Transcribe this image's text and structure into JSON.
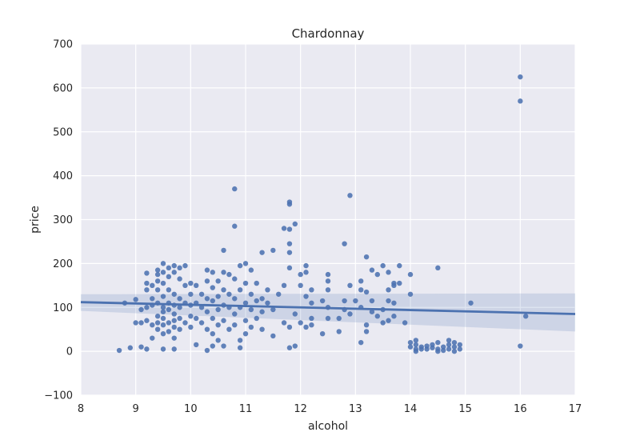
{
  "chart_data": {
    "type": "scatter",
    "title": "Chardonnay",
    "xlabel": "alcohol",
    "ylabel": "price",
    "xlim": [
      8,
      17
    ],
    "ylim": [
      -100,
      700
    ],
    "xticks": [
      8,
      9,
      10,
      11,
      12,
      13,
      14,
      15,
      16,
      17
    ],
    "yticks": [
      -100,
      0,
      100,
      200,
      300,
      400,
      500,
      600,
      700
    ],
    "ytick_labels": [
      "−100",
      "0",
      "100",
      "200",
      "300",
      "400",
      "500",
      "600",
      "700"
    ],
    "grid": true,
    "colors": {
      "background": "#eaeaf2",
      "grid": "#ffffff",
      "points": "#4c72b0",
      "line": "#4c72b0",
      "band": "#4c72b0"
    },
    "regression": {
      "x": [
        8,
        17
      ],
      "y": [
        112,
        85
      ],
      "ci_lower": [
        92,
        45
      ],
      "ci_upper": [
        130,
        132
      ]
    },
    "points": [
      [
        8.7,
        2
      ],
      [
        8.9,
        8
      ],
      [
        8.8,
        110
      ],
      [
        9.0,
        65
      ],
      [
        9.0,
        118
      ],
      [
        9.1,
        10
      ],
      [
        9.1,
        95
      ],
      [
        9.1,
        65
      ],
      [
        9.2,
        178
      ],
      [
        9.2,
        155
      ],
      [
        9.2,
        140
      ],
      [
        9.2,
        100
      ],
      [
        9.2,
        70
      ],
      [
        9.2,
        5
      ],
      [
        9.3,
        150
      ],
      [
        9.3,
        120
      ],
      [
        9.3,
        60
      ],
      [
        9.3,
        105
      ],
      [
        9.3,
        30
      ],
      [
        9.4,
        185
      ],
      [
        9.4,
        175
      ],
      [
        9.4,
        160
      ],
      [
        9.4,
        140
      ],
      [
        9.4,
        110
      ],
      [
        9.4,
        80
      ],
      [
        9.4,
        65
      ],
      [
        9.4,
        50
      ],
      [
        9.5,
        200
      ],
      [
        9.5,
        180
      ],
      [
        9.5,
        155
      ],
      [
        9.5,
        125
      ],
      [
        9.5,
        100
      ],
      [
        9.5,
        90
      ],
      [
        9.5,
        75
      ],
      [
        9.5,
        60
      ],
      [
        9.5,
        40
      ],
      [
        9.5,
        5
      ],
      [
        9.6,
        190
      ],
      [
        9.6,
        170
      ],
      [
        9.6,
        140
      ],
      [
        9.6,
        110
      ],
      [
        9.6,
        95
      ],
      [
        9.6,
        65
      ],
      [
        9.6,
        45
      ],
      [
        9.7,
        195
      ],
      [
        9.7,
        180
      ],
      [
        9.7,
        130
      ],
      [
        9.7,
        105
      ],
      [
        9.7,
        85
      ],
      [
        9.7,
        70
      ],
      [
        9.7,
        55
      ],
      [
        9.7,
        30
      ],
      [
        9.7,
        5
      ],
      [
        9.8,
        190
      ],
      [
        9.8,
        165
      ],
      [
        9.8,
        120
      ],
      [
        9.8,
        100
      ],
      [
        9.8,
        75
      ],
      [
        9.8,
        50
      ],
      [
        9.9,
        195
      ],
      [
        9.9,
        150
      ],
      [
        9.9,
        110
      ],
      [
        9.9,
        65
      ],
      [
        10.0,
        155
      ],
      [
        10.0,
        130
      ],
      [
        10.0,
        105
      ],
      [
        10.0,
        80
      ],
      [
        10.0,
        55
      ],
      [
        10.1,
        150
      ],
      [
        10.1,
        110
      ],
      [
        10.1,
        75
      ],
      [
        10.1,
        15
      ],
      [
        10.2,
        130
      ],
      [
        10.2,
        100
      ],
      [
        10.2,
        65
      ],
      [
        10.3,
        185
      ],
      [
        10.3,
        160
      ],
      [
        10.3,
        120
      ],
      [
        10.3,
        90
      ],
      [
        10.3,
        50
      ],
      [
        10.3,
        2
      ],
      [
        10.4,
        180
      ],
      [
        10.4,
        145
      ],
      [
        10.4,
        115
      ],
      [
        10.4,
        75
      ],
      [
        10.4,
        40
      ],
      [
        10.4,
        12
      ],
      [
        10.5,
        160
      ],
      [
        10.5,
        125
      ],
      [
        10.5,
        95
      ],
      [
        10.5,
        60
      ],
      [
        10.5,
        25
      ],
      [
        10.6,
        230
      ],
      [
        10.6,
        180
      ],
      [
        10.6,
        140
      ],
      [
        10.6,
        105
      ],
      [
        10.6,
        70
      ],
      [
        10.6,
        12
      ],
      [
        10.7,
        175
      ],
      [
        10.7,
        130
      ],
      [
        10.7,
        100
      ],
      [
        10.7,
        50
      ],
      [
        10.8,
        370
      ],
      [
        10.8,
        285
      ],
      [
        10.8,
        165
      ],
      [
        10.8,
        120
      ],
      [
        10.8,
        85
      ],
      [
        10.8,
        60
      ],
      [
        10.9,
        195
      ],
      [
        10.9,
        140
      ],
      [
        10.9,
        100
      ],
      [
        10.9,
        25
      ],
      [
        10.9,
        8
      ],
      [
        11.0,
        200
      ],
      [
        11.0,
        155
      ],
      [
        11.0,
        110
      ],
      [
        11.0,
        70
      ],
      [
        11.0,
        40
      ],
      [
        11.1,
        185
      ],
      [
        11.1,
        130
      ],
      [
        11.1,
        95
      ],
      [
        11.1,
        55
      ],
      [
        11.2,
        155
      ],
      [
        11.2,
        115
      ],
      [
        11.2,
        75
      ],
      [
        11.3,
        225
      ],
      [
        11.3,
        120
      ],
      [
        11.3,
        90
      ],
      [
        11.3,
        50
      ],
      [
        11.4,
        140
      ],
      [
        11.4,
        110
      ],
      [
        11.5,
        230
      ],
      [
        11.5,
        95
      ],
      [
        11.5,
        35
      ],
      [
        11.6,
        130
      ],
      [
        11.7,
        280
      ],
      [
        11.7,
        150
      ],
      [
        11.7,
        65
      ],
      [
        11.8,
        340
      ],
      [
        11.8,
        335
      ],
      [
        11.8,
        278
      ],
      [
        11.8,
        245
      ],
      [
        11.8,
        225
      ],
      [
        11.8,
        190
      ],
      [
        11.8,
        55
      ],
      [
        11.8,
        8
      ],
      [
        11.9,
        290
      ],
      [
        11.9,
        85
      ],
      [
        11.9,
        12
      ],
      [
        12.0,
        175
      ],
      [
        12.0,
        150
      ],
      [
        12.0,
        65
      ],
      [
        12.1,
        195
      ],
      [
        12.1,
        180
      ],
      [
        12.1,
        125
      ],
      [
        12.1,
        55
      ],
      [
        12.2,
        140
      ],
      [
        12.2,
        110
      ],
      [
        12.2,
        75
      ],
      [
        12.2,
        60
      ],
      [
        12.4,
        115
      ],
      [
        12.4,
        40
      ],
      [
        12.5,
        175
      ],
      [
        12.5,
        160
      ],
      [
        12.5,
        140
      ],
      [
        12.5,
        100
      ],
      [
        12.5,
        75
      ],
      [
        12.7,
        75
      ],
      [
        12.7,
        45
      ],
      [
        12.8,
        245
      ],
      [
        12.8,
        115
      ],
      [
        12.8,
        95
      ],
      [
        12.9,
        355
      ],
      [
        12.9,
        150
      ],
      [
        12.9,
        85
      ],
      [
        13.0,
        115
      ],
      [
        13.1,
        160
      ],
      [
        13.1,
        140
      ],
      [
        13.1,
        100
      ],
      [
        13.1,
        20
      ],
      [
        13.2,
        215
      ],
      [
        13.2,
        135
      ],
      [
        13.2,
        60
      ],
      [
        13.2,
        45
      ],
      [
        13.3,
        185
      ],
      [
        13.3,
        115
      ],
      [
        13.3,
        90
      ],
      [
        13.4,
        175
      ],
      [
        13.4,
        80
      ],
      [
        13.5,
        195
      ],
      [
        13.5,
        95
      ],
      [
        13.5,
        65
      ],
      [
        13.6,
        180
      ],
      [
        13.6,
        140
      ],
      [
        13.6,
        115
      ],
      [
        13.6,
        70
      ],
      [
        13.7,
        155
      ],
      [
        13.7,
        150
      ],
      [
        13.7,
        110
      ],
      [
        13.7,
        80
      ],
      [
        13.8,
        195
      ],
      [
        13.8,
        155
      ],
      [
        13.9,
        65
      ],
      [
        14.0,
        175
      ],
      [
        14.0,
        130
      ],
      [
        14.0,
        20
      ],
      [
        14.0,
        10
      ],
      [
        14.1,
        25
      ],
      [
        14.1,
        15
      ],
      [
        14.1,
        5
      ],
      [
        14.1,
        0
      ],
      [
        14.2,
        10
      ],
      [
        14.2,
        5
      ],
      [
        14.3,
        5
      ],
      [
        14.3,
        12
      ],
      [
        14.4,
        8
      ],
      [
        14.4,
        15
      ],
      [
        14.5,
        190
      ],
      [
        14.5,
        20
      ],
      [
        14.5,
        5
      ],
      [
        14.5,
        0
      ],
      [
        14.6,
        10
      ],
      [
        14.6,
        2
      ],
      [
        14.7,
        25
      ],
      [
        14.7,
        15
      ],
      [
        14.7,
        5
      ],
      [
        14.8,
        20
      ],
      [
        14.8,
        10
      ],
      [
        14.8,
        0
      ],
      [
        14.9,
        15
      ],
      [
        14.9,
        5
      ],
      [
        15.1,
        110
      ],
      [
        16.0,
        625
      ],
      [
        16.0,
        570
      ],
      [
        16.0,
        12
      ],
      [
        16.1,
        80
      ]
    ]
  }
}
